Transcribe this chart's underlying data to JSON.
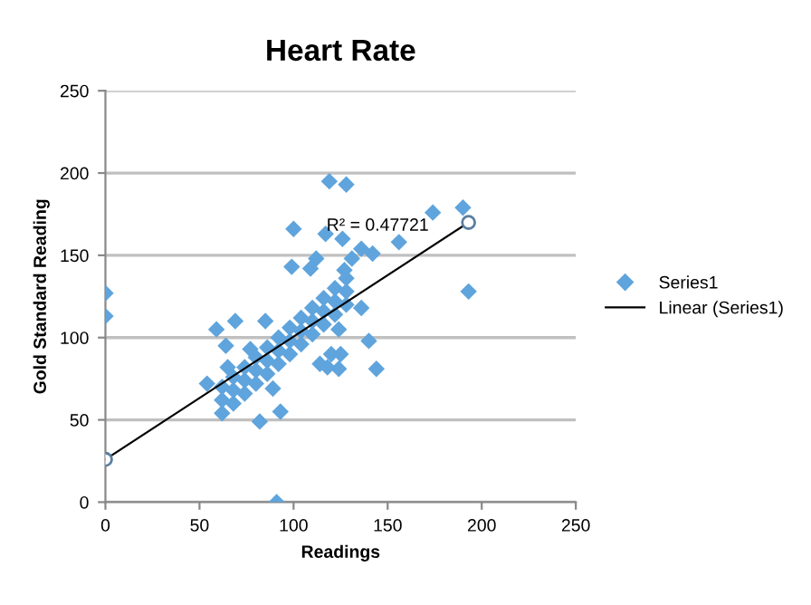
{
  "chart_data": {
    "type": "scatter",
    "title": "Heart Rate",
    "xlabel": "Readings",
    "ylabel": "Gold Standard Reading",
    "xlim": [
      0,
      250
    ],
    "ylim": [
      0,
      250
    ],
    "xticks": [
      0,
      50,
      100,
      150,
      200,
      250
    ],
    "yticks": [
      0,
      50,
      100,
      150,
      200,
      250
    ],
    "grid": "y",
    "legend": "right",
    "annotations": [
      "R² = 0.47721"
    ],
    "series": [
      {
        "name": "Series1",
        "marker": "diamond",
        "color": "#5fa4dc",
        "x": [
          0,
          0,
          91,
          119,
          128,
          190,
          193,
          174,
          156,
          100,
          117,
          126,
          136,
          142,
          112,
          131,
          99,
          109,
          127,
          59,
          69,
          85,
          54,
          82,
          93,
          89,
          65,
          140,
          144,
          136,
          114,
          120,
          124,
          118,
          125,
          124,
          64,
          77,
          62,
          62,
          62,
          68,
          68,
          68,
          74,
          74,
          74,
          80,
          80,
          80,
          86,
          86,
          86,
          92,
          92,
          92,
          98,
          98,
          98,
          104,
          104,
          104,
          110,
          110,
          110,
          116,
          116,
          116,
          122,
          122,
          122,
          128,
          128,
          128
        ],
        "values": [
          127,
          113,
          0,
          195,
          193,
          179,
          128,
          176,
          158,
          166,
          163,
          160,
          154,
          151,
          148,
          148,
          143,
          142,
          141,
          105,
          110,
          110,
          72,
          49,
          55,
          69,
          82,
          98,
          81,
          118,
          84,
          90,
          81,
          82,
          90,
          105,
          95,
          93,
          54,
          62,
          70,
          60,
          68,
          76,
          66,
          74,
          82,
          72,
          80,
          88,
          78,
          86,
          94,
          84,
          92,
          100,
          90,
          98,
          106,
          96,
          104,
          112,
          102,
          110,
          118,
          108,
          116,
          124,
          114,
          122,
          130,
          120,
          128,
          136
        ]
      },
      {
        "name": "Linear (Series1)",
        "type": "line",
        "marker": "circle",
        "color": "#000000",
        "x": [
          0,
          193
        ],
        "values": [
          26,
          170
        ]
      }
    ]
  }
}
